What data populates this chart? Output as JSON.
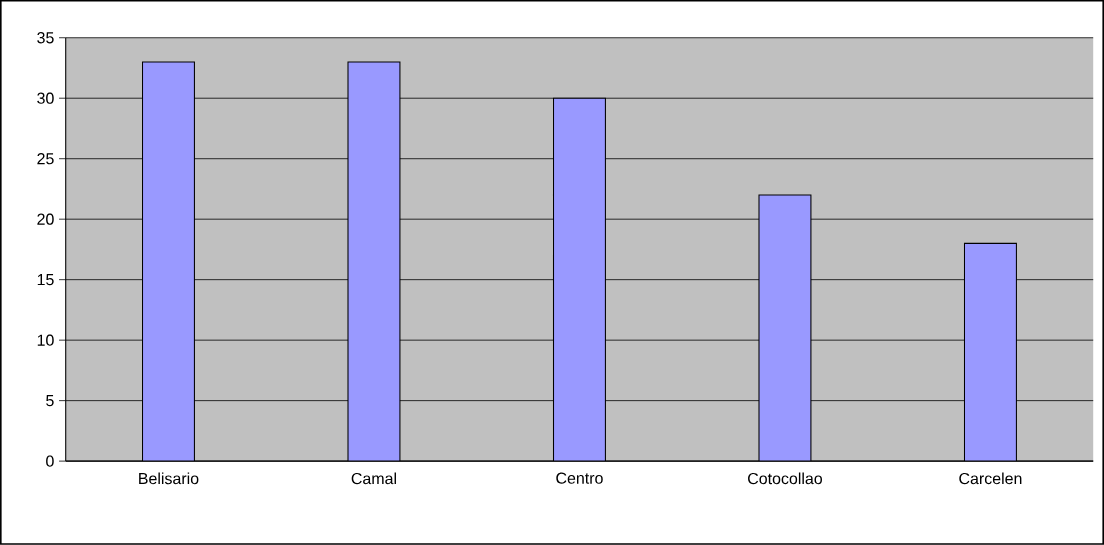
{
  "chart_data": {
    "type": "bar",
    "categories": [
      "Belisario",
      "Camal",
      "Centro",
      "Cotocollao",
      "Carcelen"
    ],
    "values": [
      33,
      33,
      30,
      22,
      18
    ],
    "color": "#9999ff",
    "ylim": [
      0,
      35
    ],
    "yticks": [
      0,
      5,
      10,
      15,
      20,
      25,
      30,
      35
    ],
    "grid": "y"
  }
}
